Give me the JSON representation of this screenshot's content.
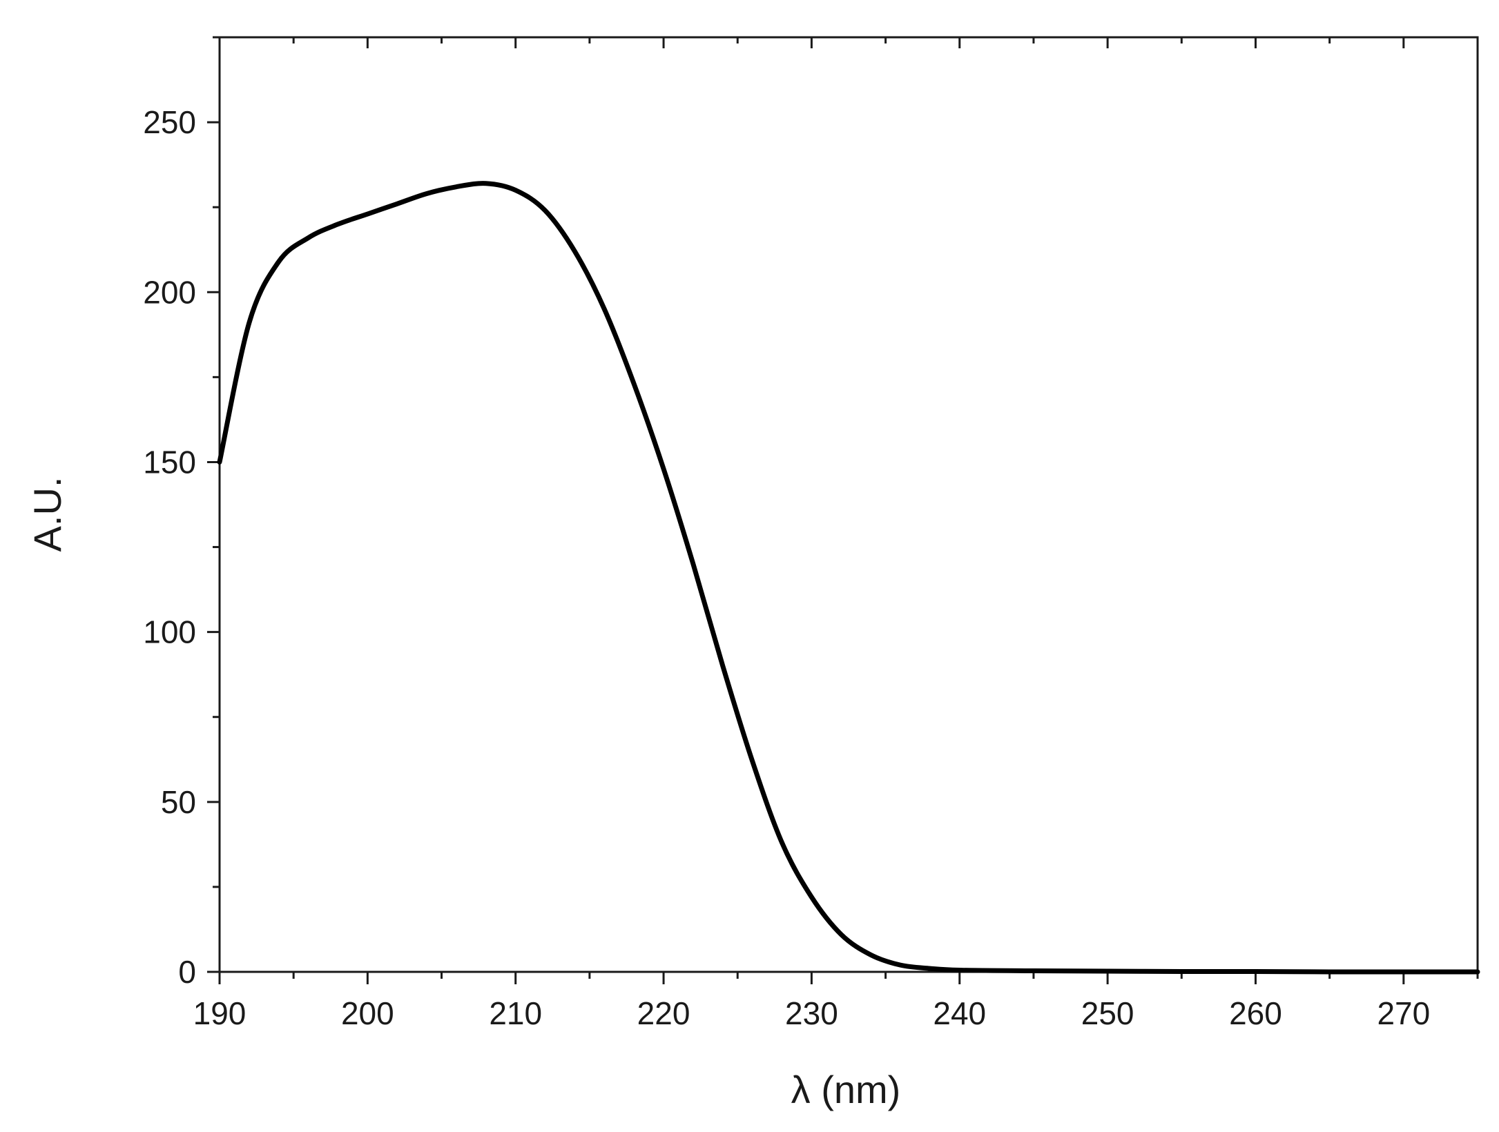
{
  "chart_data": {
    "type": "line",
    "title": "",
    "xlabel": "λ (nm)",
    "ylabel": "A.U.",
    "xlim": [
      190,
      275
    ],
    "ylim": [
      0,
      275
    ],
    "grid": false,
    "legend": "none",
    "x_ticks": [
      190,
      200,
      210,
      220,
      230,
      240,
      250,
      260,
      270
    ],
    "x_tick_labels": [
      "190",
      "200",
      "210",
      "220",
      "230",
      "240",
      "250",
      "260",
      "270"
    ],
    "x_minor_ticks": [
      195,
      205,
      215,
      225,
      235,
      245,
      255,
      265,
      275
    ],
    "y_ticks": [
      0,
      50,
      100,
      150,
      200,
      250
    ],
    "y_tick_labels": [
      "0",
      "50",
      "100",
      "150",
      "200",
      "250"
    ],
    "y_minor_ticks": [
      25,
      75,
      125,
      175,
      225,
      275
    ],
    "line_color": "#000000",
    "series": [
      {
        "x": [
          190,
          192,
          194,
          196,
          198,
          200,
          202,
          204,
          206,
          208,
          210,
          212,
          214,
          216,
          218,
          220,
          222,
          224,
          226,
          228,
          230,
          232,
          234,
          236,
          238,
          240,
          245,
          250,
          255,
          260,
          265,
          270,
          275
        ],
        "values": [
          150,
          191,
          209,
          216,
          220,
          223,
          226,
          229,
          231,
          232,
          230,
          224,
          212,
          195,
          173,
          148,
          120,
          90,
          62,
          38,
          22,
          11,
          5,
          2,
          1,
          0.5,
          0.3,
          0.2,
          0.1,
          0.1,
          0,
          0,
          0
        ]
      }
    ]
  }
}
